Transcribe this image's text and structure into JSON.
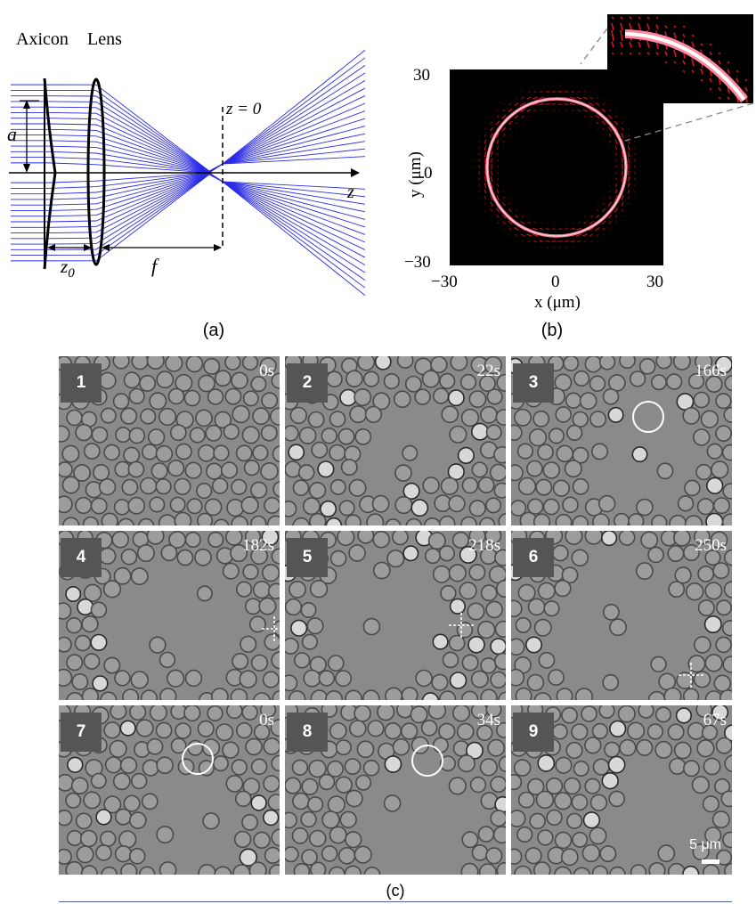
{
  "figure_a": {
    "axicon_label": "Axicon",
    "lens_label": "Lens",
    "a_label": "a",
    "z0_label": "z",
    "z0_sub": "0",
    "f_label": "f",
    "z_axis_label": "z",
    "z_eq_label": "z = 0",
    "caption": "(a)",
    "ray_color": "#2a2ae6"
  },
  "figure_b": {
    "ylabel": "y (μm)",
    "xlabel": "x (μm)",
    "ticks_y": [
      "30",
      "0",
      "−30"
    ],
    "ticks_x": [
      "−30",
      "0",
      "30"
    ],
    "caption": "(b)",
    "ring_color": "#ff8aa0",
    "arrow_color": "#e01020"
  },
  "figure_c": {
    "caption": "(c)",
    "scale_label": "5 μm",
    "panels": [
      {
        "number": "1",
        "time": "0s",
        "marker": "none"
      },
      {
        "number": "2",
        "time": "22s",
        "marker": "none"
      },
      {
        "number": "3",
        "time": "166s",
        "marker": "circle"
      },
      {
        "number": "4",
        "time": "182s",
        "marker": "cross"
      },
      {
        "number": "5",
        "time": "218s",
        "marker": "cross"
      },
      {
        "number": "6",
        "time": "250s",
        "marker": "cross"
      },
      {
        "number": "7",
        "time": "0s",
        "marker": "circle"
      },
      {
        "number": "8",
        "time": "34s",
        "marker": "circle"
      },
      {
        "number": "9",
        "time": "67s",
        "marker": "none"
      }
    ]
  }
}
